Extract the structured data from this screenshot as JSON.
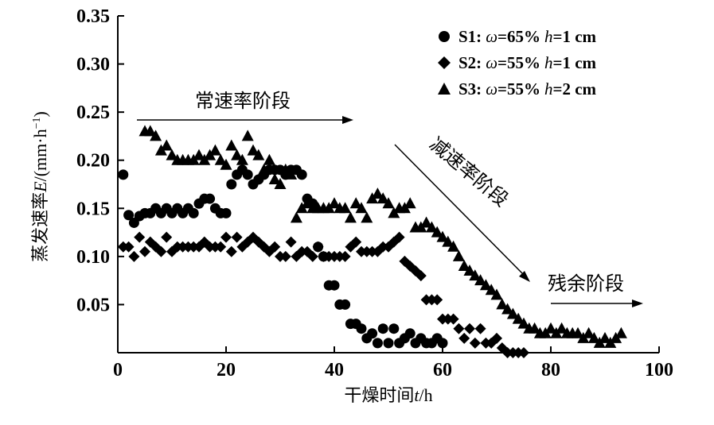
{
  "chart_data": {
    "type": "scatter",
    "title": "",
    "xlabel_text": "干燥时间",
    "xlabel_var": "t",
    "xlabel_unit": "/h",
    "ylabel_text": "蒸发速率",
    "ylabel_var": "E",
    "ylabel_unit_pre": "/(mm·h",
    "ylabel_unit_sup": "−1",
    "ylabel_unit_post": ")",
    "xlim": [
      0,
      100
    ],
    "ylim": [
      0,
      0.35
    ],
    "x_ticks": [
      "0",
      "20",
      "40",
      "60",
      "80",
      "100"
    ],
    "y_ticks": [
      "0.05",
      "0.10",
      "0.15",
      "0.20",
      "0.25",
      "0.30",
      "0.35"
    ],
    "grid": false,
    "legend_position": "top-right",
    "series": [
      {
        "name": "S1: ω=65% h=1 cm",
        "legend_id": "S1:",
        "legend_omega": "ω",
        "legend_omega_val": "=65%",
        "legend_h": "h",
        "legend_h_val": "=1 cm",
        "marker": "circle",
        "points": [
          [
            1,
            0.185
          ],
          [
            2,
            0.143
          ],
          [
            3,
            0.135
          ],
          [
            4,
            0.142
          ],
          [
            5,
            0.145
          ],
          [
            6,
            0.145
          ],
          [
            7,
            0.15
          ],
          [
            8,
            0.145
          ],
          [
            9,
            0.15
          ],
          [
            10,
            0.145
          ],
          [
            11,
            0.15
          ],
          [
            12,
            0.145
          ],
          [
            13,
            0.15
          ],
          [
            14,
            0.145
          ],
          [
            15,
            0.155
          ],
          [
            16,
            0.16
          ],
          [
            17,
            0.16
          ],
          [
            18,
            0.15
          ],
          [
            19,
            0.145
          ],
          [
            20,
            0.145
          ],
          [
            21,
            0.175
          ],
          [
            22,
            0.185
          ],
          [
            23,
            0.19
          ],
          [
            24,
            0.185
          ],
          [
            25,
            0.175
          ],
          [
            26,
            0.18
          ],
          [
            27,
            0.185
          ],
          [
            28,
            0.19
          ],
          [
            29,
            0.19
          ],
          [
            30,
            0.19
          ],
          [
            31,
            0.185
          ],
          [
            32,
            0.19
          ],
          [
            33,
            0.19
          ],
          [
            34,
            0.185
          ],
          [
            35,
            0.16
          ],
          [
            36,
            0.155
          ],
          [
            37,
            0.11
          ],
          [
            38,
            0.1
          ],
          [
            39,
            0.07
          ],
          [
            40,
            0.07
          ],
          [
            41,
            0.05
          ],
          [
            42,
            0.05
          ],
          [
            43,
            0.03
          ],
          [
            44,
            0.03
          ],
          [
            45,
            0.025
          ],
          [
            46,
            0.015
          ],
          [
            47,
            0.02
          ],
          [
            48,
            0.01
          ],
          [
            49,
            0.025
          ],
          [
            50,
            0.01
          ],
          [
            51,
            0.025
          ],
          [
            52,
            0.01
          ],
          [
            53,
            0.015
          ],
          [
            54,
            0.02
          ],
          [
            55,
            0.01
          ],
          [
            56,
            0.015
          ],
          [
            57,
            0.01
          ],
          [
            58,
            0.01
          ],
          [
            59,
            0.015
          ],
          [
            60,
            0.01
          ]
        ]
      },
      {
        "name": "S2: ω=55% h=1 cm",
        "legend_id": "S2:",
        "legend_omega": "ω",
        "legend_omega_val": "=55%",
        "legend_h": "h",
        "legend_h_val": "=1 cm",
        "marker": "diamond",
        "points": [
          [
            1,
            0.11
          ],
          [
            2,
            0.11
          ],
          [
            3,
            0.1
          ],
          [
            4,
            0.12
          ],
          [
            5,
            0.105
          ],
          [
            6,
            0.115
          ],
          [
            7,
            0.11
          ],
          [
            8,
            0.105
          ],
          [
            9,
            0.12
          ],
          [
            10,
            0.105
          ],
          [
            11,
            0.11
          ],
          [
            12,
            0.11
          ],
          [
            13,
            0.11
          ],
          [
            14,
            0.11
          ],
          [
            15,
            0.11
          ],
          [
            16,
            0.115
          ],
          [
            17,
            0.11
          ],
          [
            18,
            0.11
          ],
          [
            19,
            0.11
          ],
          [
            20,
            0.12
          ],
          [
            21,
            0.105
          ],
          [
            22,
            0.12
          ],
          [
            23,
            0.11
          ],
          [
            24,
            0.115
          ],
          [
            25,
            0.12
          ],
          [
            26,
            0.115
          ],
          [
            27,
            0.11
          ],
          [
            28,
            0.105
          ],
          [
            29,
            0.11
          ],
          [
            30,
            0.1
          ],
          [
            31,
            0.1
          ],
          [
            32,
            0.115
          ],
          [
            33,
            0.1
          ],
          [
            34,
            0.105
          ],
          [
            35,
            0.105
          ],
          [
            36,
            0.1
          ],
          [
            37,
            0.11
          ],
          [
            38,
            0.1
          ],
          [
            39,
            0.1
          ],
          [
            40,
            0.1
          ],
          [
            41,
            0.1
          ],
          [
            42,
            0.1
          ],
          [
            43,
            0.11
          ],
          [
            44,
            0.115
          ],
          [
            45,
            0.105
          ],
          [
            46,
            0.105
          ],
          [
            47,
            0.105
          ],
          [
            48,
            0.105
          ],
          [
            49,
            0.11
          ],
          [
            50,
            0.11
          ],
          [
            51,
            0.115
          ],
          [
            52,
            0.12
          ],
          [
            53,
            0.095
          ],
          [
            54,
            0.09
          ],
          [
            55,
            0.085
          ],
          [
            56,
            0.08
          ],
          [
            57,
            0.055
          ],
          [
            58,
            0.055
          ],
          [
            59,
            0.055
          ],
          [
            60,
            0.035
          ],
          [
            61,
            0.035
          ],
          [
            62,
            0.035
          ],
          [
            63,
            0.025
          ],
          [
            64,
            0.015
          ],
          [
            65,
            0.025
          ],
          [
            66,
            0.01
          ],
          [
            67,
            0.025
          ],
          [
            68,
            0.01
          ],
          [
            69,
            0.01
          ],
          [
            70,
            0.015
          ],
          [
            71,
            0.005
          ],
          [
            72,
            0.0
          ],
          [
            73,
            0.0
          ],
          [
            74,
            0.0
          ],
          [
            75,
            0.0
          ]
        ]
      },
      {
        "name": "S3: ω=55% h=2 cm",
        "legend_id": "S3:",
        "legend_omega": "ω",
        "legend_omega_val": "=55%",
        "legend_h": "h",
        "legend_h_val": "=2 cm",
        "marker": "triangle",
        "points": [
          [
            5,
            0.23
          ],
          [
            6,
            0.23
          ],
          [
            7,
            0.225
          ],
          [
            8,
            0.21
          ],
          [
            9,
            0.215
          ],
          [
            10,
            0.205
          ],
          [
            11,
            0.2
          ],
          [
            12,
            0.2
          ],
          [
            13,
            0.2
          ],
          [
            14,
            0.2
          ],
          [
            15,
            0.205
          ],
          [
            16,
            0.2
          ],
          [
            17,
            0.205
          ],
          [
            18,
            0.21
          ],
          [
            19,
            0.2
          ],
          [
            20,
            0.195
          ],
          [
            21,
            0.215
          ],
          [
            22,
            0.205
          ],
          [
            23,
            0.2
          ],
          [
            24,
            0.225
          ],
          [
            25,
            0.21
          ],
          [
            26,
            0.205
          ],
          [
            27,
            0.19
          ],
          [
            28,
            0.2
          ],
          [
            29,
            0.18
          ],
          [
            30,
            0.175
          ],
          [
            31,
            0.19
          ],
          [
            32,
            0.185
          ],
          [
            33,
            0.14
          ],
          [
            34,
            0.15
          ],
          [
            35,
            0.155
          ],
          [
            36,
            0.15
          ],
          [
            37,
            0.15
          ],
          [
            38,
            0.15
          ],
          [
            39,
            0.15
          ],
          [
            40,
            0.155
          ],
          [
            41,
            0.15
          ],
          [
            42,
            0.15
          ],
          [
            43,
            0.14
          ],
          [
            44,
            0.155
          ],
          [
            45,
            0.15
          ],
          [
            46,
            0.14
          ],
          [
            47,
            0.16
          ],
          [
            48,
            0.165
          ],
          [
            49,
            0.16
          ],
          [
            50,
            0.155
          ],
          [
            51,
            0.145
          ],
          [
            52,
            0.15
          ],
          [
            53,
            0.15
          ],
          [
            54,
            0.155
          ],
          [
            55,
            0.13
          ],
          [
            56,
            0.13
          ],
          [
            57,
            0.135
          ],
          [
            58,
            0.13
          ],
          [
            59,
            0.125
          ],
          [
            60,
            0.12
          ],
          [
            61,
            0.115
          ],
          [
            62,
            0.11
          ],
          [
            63,
            0.1
          ],
          [
            64,
            0.09
          ],
          [
            65,
            0.085
          ],
          [
            66,
            0.08
          ],
          [
            67,
            0.075
          ],
          [
            68,
            0.07
          ],
          [
            69,
            0.065
          ],
          [
            70,
            0.06
          ],
          [
            71,
            0.05
          ],
          [
            72,
            0.045
          ],
          [
            73,
            0.04
          ],
          [
            74,
            0.035
          ],
          [
            75,
            0.03
          ],
          [
            76,
            0.025
          ],
          [
            77,
            0.025
          ],
          [
            78,
            0.02
          ],
          [
            79,
            0.02
          ],
          [
            80,
            0.025
          ],
          [
            81,
            0.02
          ],
          [
            82,
            0.025
          ],
          [
            83,
            0.02
          ],
          [
            84,
            0.02
          ],
          [
            85,
            0.02
          ],
          [
            86,
            0.015
          ],
          [
            87,
            0.02
          ],
          [
            88,
            0.015
          ],
          [
            89,
            0.01
          ],
          [
            90,
            0.015
          ],
          [
            91,
            0.01
          ],
          [
            92,
            0.015
          ],
          [
            93,
            0.02
          ]
        ]
      }
    ],
    "annotations": [
      {
        "id": "constant",
        "text": "常速率阶段"
      },
      {
        "id": "falling",
        "text": "减速率阶段"
      },
      {
        "id": "residual",
        "text": "残余阶段"
      }
    ]
  }
}
